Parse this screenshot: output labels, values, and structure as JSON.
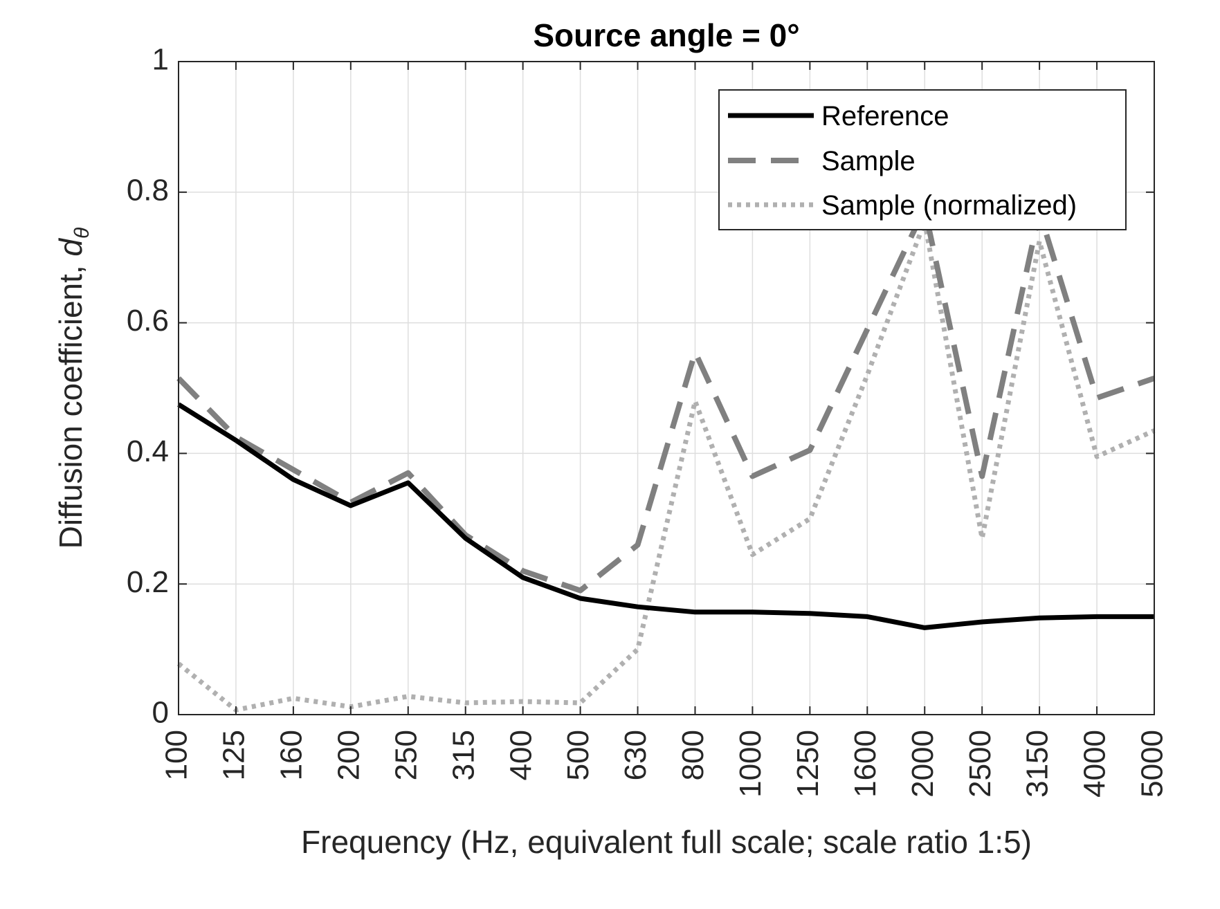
{
  "chart_data": {
    "type": "line",
    "title": "Source angle = 0°",
    "xlabel": "Frequency (Hz, equivalent full scale; scale ratio 1:5)",
    "ylabel": "Diffusion coefficient, ",
    "ylabel_symbol": "d",
    "ylabel_subscript": "θ",
    "categories": [
      "100",
      "125",
      "160",
      "200",
      "250",
      "315",
      "400",
      "500",
      "630",
      "800",
      "1000",
      "1250",
      "1600",
      "2000",
      "2500",
      "3150",
      "4000",
      "5000"
    ],
    "ylim": [
      0,
      1
    ],
    "yticks": [
      "0",
      "0.2",
      "0.4",
      "0.6",
      "0.8",
      "1"
    ],
    "ytick_values": [
      0,
      0.2,
      0.4,
      0.6,
      0.8,
      1
    ],
    "grid": true,
    "legend_position": "top-right",
    "series": [
      {
        "name": "Reference",
        "style": "solid",
        "color": "#000000",
        "values": [
          0.475,
          0.42,
          0.36,
          0.32,
          0.355,
          0.27,
          0.21,
          0.178,
          0.165,
          0.157,
          0.157,
          0.155,
          0.15,
          0.133,
          0.142,
          0.148,
          0.15,
          0.15
        ]
      },
      {
        "name": "Sample",
        "style": "dashed",
        "color": "#808080",
        "values": [
          0.515,
          0.425,
          0.375,
          0.325,
          0.37,
          0.275,
          0.22,
          0.19,
          0.26,
          0.555,
          0.365,
          0.405,
          0.59,
          0.775,
          0.365,
          0.77,
          0.485,
          0.515
        ]
      },
      {
        "name": "Sample (normalized)",
        "style": "dotted",
        "color": "#b0b0b0",
        "values": [
          0.078,
          0.007,
          0.025,
          0.012,
          0.028,
          0.018,
          0.02,
          0.018,
          0.1,
          0.48,
          0.245,
          0.3,
          0.52,
          0.755,
          0.27,
          0.725,
          0.395,
          0.435
        ]
      }
    ]
  }
}
